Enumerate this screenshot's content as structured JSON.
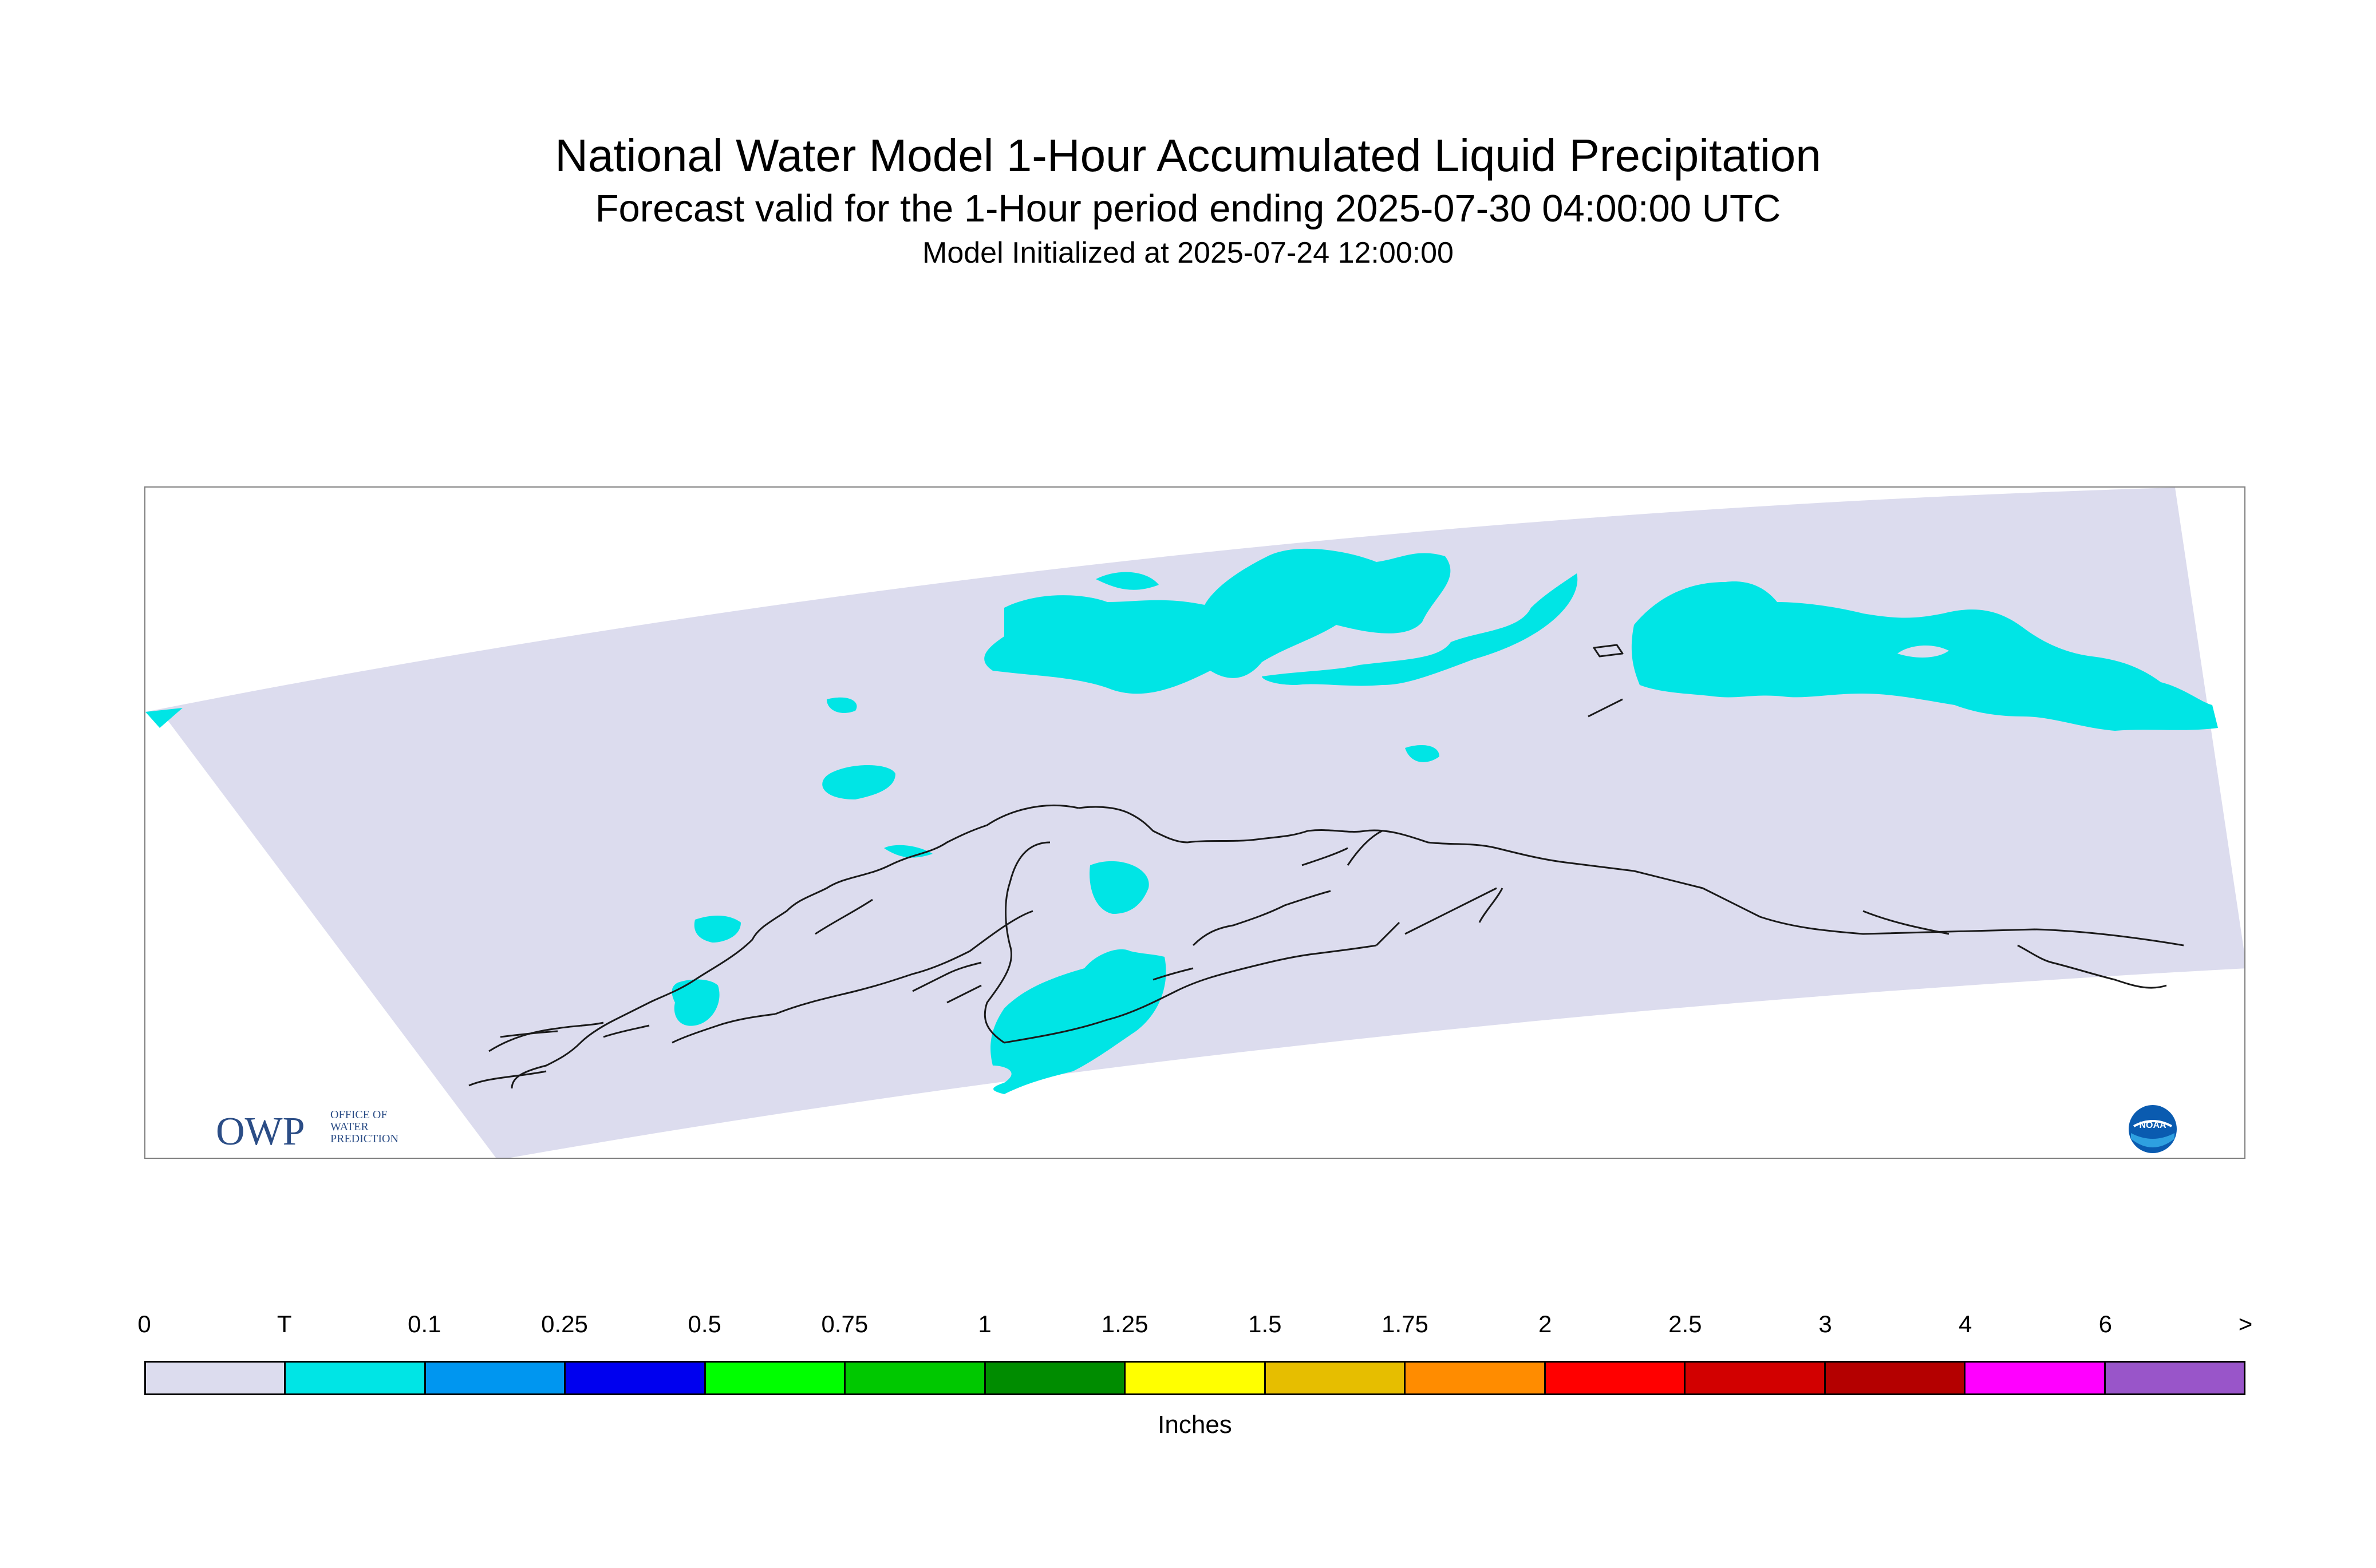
{
  "title": "National Water Model 1-Hour Accumulated Liquid Precipitation",
  "subtitle": "Forecast valid for the 1-Hour period ending 2025-07-30 04:00:00 UTC",
  "init_line": "Model Initialized at 2025-07-24 12:00:00",
  "logos": {
    "owp": {
      "mark": "OWP",
      "text": "OFFICE OF WATER PREDICTION"
    },
    "noaa": {
      "text": "NOAA"
    }
  },
  "colors": {
    "domain_fill": "#dcdcee",
    "trace_fill": "#00e5e5",
    "coastline": "#1a1a1a"
  },
  "legend": {
    "units": "Inches",
    "tick_labels": [
      "0",
      "T",
      "0.1",
      "0.25",
      "0.5",
      "0.75",
      "1",
      "1.25",
      "1.5",
      "1.75",
      "2",
      "2.5",
      "3",
      "4",
      "6",
      ">"
    ],
    "colors": [
      "#dcdcee",
      "#00e5e5",
      "#0096f0",
      "#0000ef",
      "#00ff00",
      "#00c800",
      "#008c00",
      "#ffff00",
      "#e6be00",
      "#ff8c00",
      "#ff0000",
      "#d20000",
      "#b40000",
      "#ff00ff",
      "#9955c9"
    ]
  }
}
